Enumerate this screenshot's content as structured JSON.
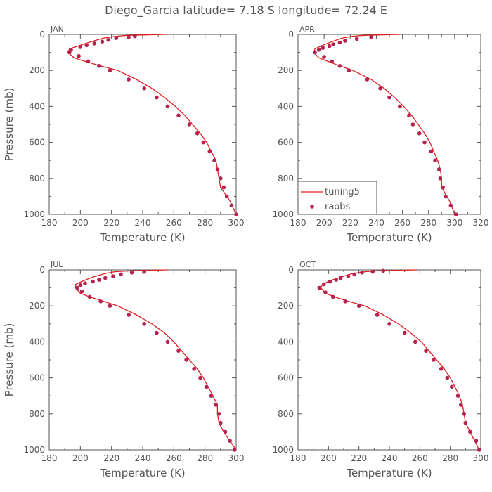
{
  "title": "Diego_Garcia  latitude= 7.18 S longitude= 72.24 E",
  "colors": {
    "model": "#e02020",
    "obs": "#b5234f",
    "axis": "#555555"
  },
  "legend": {
    "model_label": "tuning5",
    "obs_label": "raobs"
  },
  "chart_data": [
    {
      "type": "line",
      "month": "JAN",
      "xlabel": "Temperature (K)",
      "ylabel": "Pressure (mb)",
      "xlim": [
        180,
        300
      ],
      "xticks": [
        180,
        200,
        220,
        240,
        260,
        280,
        300
      ],
      "ylim": [
        1000,
        0
      ],
      "yticks": [
        0,
        200,
        400,
        600,
        800,
        1000
      ],
      "series": [
        {
          "name": "tuning5",
          "kind": "line",
          "points": [
            [
              255,
              0
            ],
            [
              230,
              5
            ],
            [
              223,
              10
            ],
            [
              215,
              20
            ],
            [
              207,
              40
            ],
            [
              200,
              60
            ],
            [
              193,
              80
            ],
            [
              192,
              100
            ],
            [
              196,
              130
            ],
            [
              203,
              150
            ],
            [
              213,
              175
            ],
            [
              224,
              200
            ],
            [
              236,
              250
            ],
            [
              246,
              300
            ],
            [
              254,
              350
            ],
            [
              261,
              400
            ],
            [
              267,
              450
            ],
            [
              272,
              500
            ],
            [
              277,
              550
            ],
            [
              281,
              600
            ],
            [
              284,
              650
            ],
            [
              287,
              700
            ],
            [
              288,
              750
            ],
            [
              289,
              800
            ],
            [
              290,
              850
            ],
            [
              292,
              875
            ],
            [
              296,
              925
            ],
            [
              300,
              1000
            ]
          ]
        },
        {
          "name": "raobs",
          "kind": "scatter",
          "points": [
            [
              235,
              10
            ],
            [
              231,
              15
            ],
            [
              223,
              20
            ],
            [
              218,
              30
            ],
            [
              214,
              40
            ],
            [
              209,
              50
            ],
            [
              204,
              60
            ],
            [
              200,
              70
            ],
            [
              194,
              85
            ],
            [
              193,
              100
            ],
            [
              199,
              120
            ],
            [
              205,
              150
            ],
            [
              212,
              175
            ],
            [
              219,
              200
            ],
            [
              231,
              250
            ],
            [
              241,
              300
            ],
            [
              249,
              350
            ],
            [
              256,
              400
            ],
            [
              263,
              450
            ],
            [
              270,
              500
            ],
            [
              275,
              550
            ],
            [
              279,
              600
            ],
            [
              283,
              650
            ],
            [
              286,
              700
            ],
            [
              288,
              750
            ],
            [
              290,
              800
            ],
            [
              292,
              850
            ],
            [
              294,
              900
            ],
            [
              297,
              950
            ],
            [
              300,
              1000
            ]
          ]
        }
      ]
    },
    {
      "type": "line",
      "month": "APR",
      "xlabel": "Temperature (K)",
      "ylabel": "Pressure (mb)",
      "xlim": [
        180,
        320
      ],
      "xticks": [
        180,
        200,
        220,
        240,
        260,
        280,
        300,
        320
      ],
      "ylim": [
        1000,
        0
      ],
      "yticks": [
        0,
        200,
        400,
        600,
        800,
        1000
      ],
      "series": [
        {
          "name": "tuning5",
          "kind": "line",
          "points": [
            [
              258,
              0
            ],
            [
              230,
              5
            ],
            [
              222,
              10
            ],
            [
              214,
              20
            ],
            [
              206,
              40
            ],
            [
              199,
              60
            ],
            [
              193,
              80
            ],
            [
              192,
              100
            ],
            [
              196,
              130
            ],
            [
              203,
              150
            ],
            [
              212,
              175
            ],
            [
              222,
              200
            ],
            [
              236,
              250
            ],
            [
              246,
              300
            ],
            [
              254,
              350
            ],
            [
              261,
              400
            ],
            [
              267,
              450
            ],
            [
              272,
              500
            ],
            [
              277,
              550
            ],
            [
              281,
              600
            ],
            [
              284,
              650
            ],
            [
              287,
              700
            ],
            [
              289,
              750
            ],
            [
              290,
              800
            ],
            [
              290,
              850
            ],
            [
              292,
              875
            ],
            [
              296,
              925
            ],
            [
              300,
              1000
            ]
          ]
        },
        {
          "name": "raobs",
          "kind": "scatter",
          "points": [
            [
              236,
              15
            ],
            [
              225,
              25
            ],
            [
              216,
              35
            ],
            [
              212,
              45
            ],
            [
              207,
              55
            ],
            [
              204,
              65
            ],
            [
              199,
              75
            ],
            [
              196,
              85
            ],
            [
              193,
              100
            ],
            [
              200,
              125
            ],
            [
              206,
              150
            ],
            [
              212,
              175
            ],
            [
              219,
              200
            ],
            [
              233,
              250
            ],
            [
              243,
              300
            ],
            [
              250,
              350
            ],
            [
              258,
              400
            ],
            [
              265,
              450
            ],
            [
              268,
              500
            ],
            [
              273,
              550
            ],
            [
              277,
              600
            ],
            [
              282,
              650
            ],
            [
              285,
              700
            ],
            [
              288,
              750
            ],
            [
              289,
              800
            ],
            [
              291,
              850
            ],
            [
              293,
              900
            ],
            [
              297,
              950
            ],
            [
              301,
              1000
            ]
          ]
        }
      ]
    },
    {
      "type": "line",
      "month": "JUL",
      "xlabel": "Temperature (K)",
      "ylabel": "Pressure (mb)",
      "xlim": [
        180,
        300
      ],
      "xticks": [
        180,
        200,
        220,
        240,
        260,
        280,
        300
      ],
      "ylim": [
        1000,
        0
      ],
      "yticks": [
        0,
        200,
        400,
        600,
        800,
        1000
      ],
      "series": [
        {
          "name": "tuning5",
          "kind": "line",
          "points": [
            [
              256,
              0
            ],
            [
              232,
              5
            ],
            [
              222,
              10
            ],
            [
              216,
              20
            ],
            [
              208,
              40
            ],
            [
              202,
              60
            ],
            [
              197,
              80
            ],
            [
              197,
              100
            ],
            [
              200,
              130
            ],
            [
              206,
              150
            ],
            [
              215,
              175
            ],
            [
              224,
              200
            ],
            [
              236,
              250
            ],
            [
              246,
              300
            ],
            [
              254,
              350
            ],
            [
              260,
              400
            ],
            [
              265,
              450
            ],
            [
              270,
              500
            ],
            [
              275,
              550
            ],
            [
              279,
              600
            ],
            [
              282,
              650
            ],
            [
              285,
              700
            ],
            [
              288,
              750
            ],
            [
              288,
              800
            ],
            [
              289,
              850
            ],
            [
              292,
              900
            ],
            [
              296,
              950
            ],
            [
              300,
              1000
            ]
          ]
        },
        {
          "name": "raobs",
          "kind": "scatter",
          "points": [
            [
              241,
              10
            ],
            [
              233,
              15
            ],
            [
              226,
              25
            ],
            [
              221,
              35
            ],
            [
              216,
              45
            ],
            [
              212,
              55
            ],
            [
              208,
              65
            ],
            [
              203,
              75
            ],
            [
              200,
              85
            ],
            [
              198,
              100
            ],
            [
              201,
              120
            ],
            [
              206,
              150
            ],
            [
              213,
              175
            ],
            [
              219,
              200
            ],
            [
              231,
              250
            ],
            [
              241,
              300
            ],
            [
              249,
              350
            ],
            [
              256,
              400
            ],
            [
              263,
              450
            ],
            [
              268,
              500
            ],
            [
              273,
              550
            ],
            [
              277,
              600
            ],
            [
              281,
              650
            ],
            [
              284,
              700
            ],
            [
              287,
              750
            ],
            [
              289,
              800
            ],
            [
              290,
              850
            ],
            [
              293,
              900
            ],
            [
              296,
              950
            ],
            [
              299,
              1000
            ]
          ]
        }
      ]
    },
    {
      "type": "line",
      "month": "OCT",
      "xlabel": "Temperature (K)",
      "ylabel": "Pressure (mb)",
      "xlim": [
        180,
        300
      ],
      "xticks": [
        180,
        200,
        220,
        240,
        260,
        280,
        300
      ],
      "ylim": [
        1000,
        0
      ],
      "yticks": [
        0,
        200,
        400,
        600,
        800,
        1000
      ],
      "series": [
        {
          "name": "tuning5",
          "kind": "line",
          "points": [
            [
              258,
              0
            ],
            [
              232,
              5
            ],
            [
              224,
              10
            ],
            [
              216,
              20
            ],
            [
              208,
              40
            ],
            [
              201,
              60
            ],
            [
              196,
              80
            ],
            [
              195,
              100
            ],
            [
              198,
              130
            ],
            [
              204,
              150
            ],
            [
              213,
              175
            ],
            [
              224,
              200
            ],
            [
              236,
              250
            ],
            [
              246,
              300
            ],
            [
              254,
              350
            ],
            [
              261,
              400
            ],
            [
              266,
              450
            ],
            [
              271,
              500
            ],
            [
              276,
              550
            ],
            [
              280,
              600
            ],
            [
              283,
              650
            ],
            [
              286,
              700
            ],
            [
              288,
              750
            ],
            [
              289,
              800
            ],
            [
              290,
              850
            ],
            [
              293,
              900
            ],
            [
              296,
              950
            ],
            [
              299,
              1000
            ]
          ]
        },
        {
          "name": "raobs",
          "kind": "scatter",
          "points": [
            [
              236,
              5
            ],
            [
              229,
              10
            ],
            [
              222,
              15
            ],
            [
              217,
              25
            ],
            [
              213,
              35
            ],
            [
              208,
              45
            ],
            [
              205,
              55
            ],
            [
              201,
              65
            ],
            [
              197,
              80
            ],
            [
              194,
              100
            ],
            [
              198,
              125
            ],
            [
              203,
              150
            ],
            [
              211,
              175
            ],
            [
              220,
              200
            ],
            [
              232,
              250
            ],
            [
              240,
              300
            ],
            [
              250,
              350
            ],
            [
              257,
              400
            ],
            [
              264,
              450
            ],
            [
              269,
              500
            ],
            [
              274,
              550
            ],
            [
              278,
              600
            ],
            [
              281,
              650
            ],
            [
              285,
              700
            ],
            [
              287,
              750
            ],
            [
              289,
              800
            ],
            [
              290,
              850
            ],
            [
              293,
              900
            ],
            [
              297,
              950
            ],
            [
              299,
              1000
            ]
          ]
        }
      ]
    }
  ]
}
